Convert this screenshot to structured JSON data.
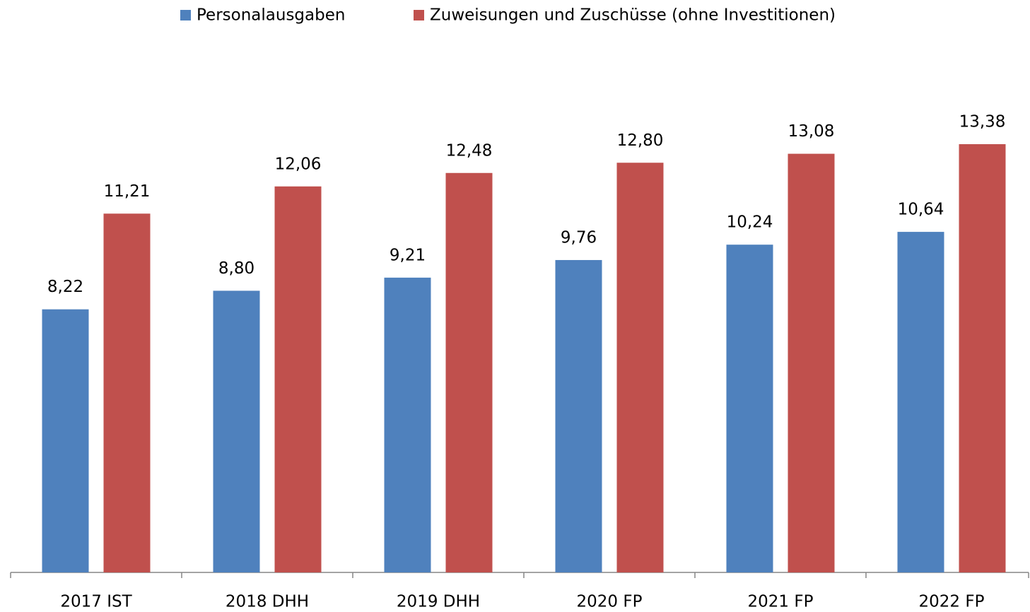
{
  "chart_data": {
    "type": "bar",
    "categories": [
      "2017 IST",
      "2018 DHH",
      "2019 DHH",
      "2020 FP",
      "2021 FP",
      "2022 FP"
    ],
    "series": [
      {
        "name": "Personalausgaben",
        "color": "#4f81bd",
        "values": [
          8.22,
          8.8,
          9.21,
          9.76,
          10.24,
          10.64
        ],
        "value_labels": [
          "8,22",
          "8,80",
          "9,21",
          "9,76",
          "10,24",
          "10,64"
        ]
      },
      {
        "name": "Zuweisungen und Zuschüsse (ohne Investitionen)",
        "color": "#c0504d",
        "values": [
          11.21,
          12.06,
          12.48,
          12.8,
          13.08,
          13.38
        ],
        "value_labels": [
          "11,21",
          "12,06",
          "12,48",
          "12,80",
          "13,08",
          "13,38"
        ]
      }
    ],
    "legend": "top"
  }
}
